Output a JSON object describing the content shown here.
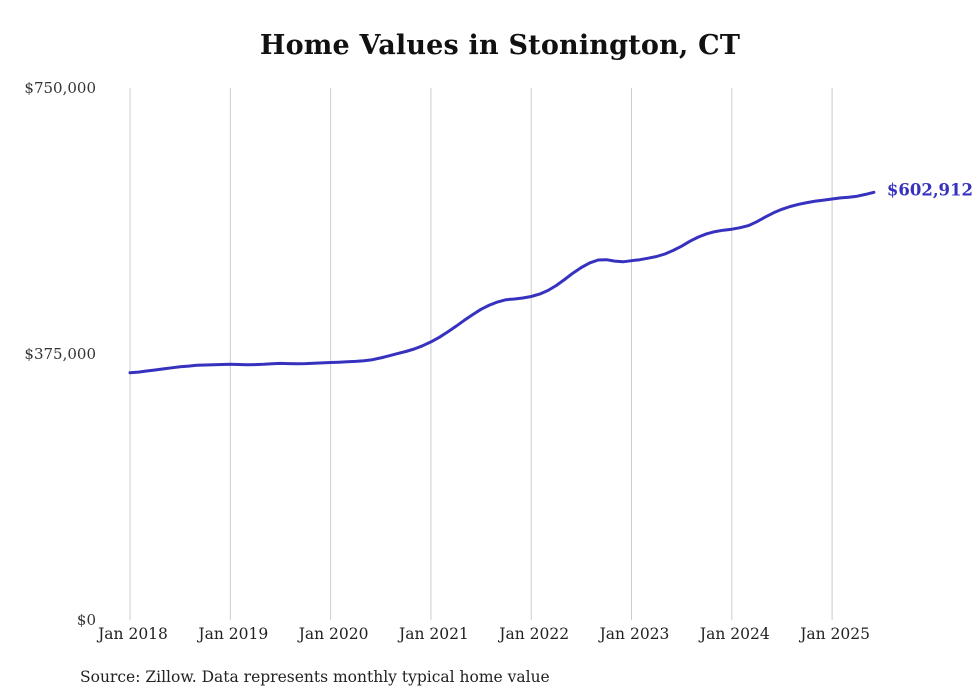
{
  "title": "Home Values in Stonington, CT",
  "source_note": "Source: Zillow. Data represents monthly typical home value",
  "end_label": "$602,912",
  "y_axis": {
    "labels": [
      "$750,000",
      "$375,000",
      "$0"
    ]
  },
  "x_axis": {
    "labels": [
      "Jan 2018",
      "Jan 2019",
      "Jan 2020",
      "Jan 2021",
      "Jan 2022",
      "Jan 2023",
      "Jan 2024",
      "Jan 2025"
    ]
  },
  "colors": {
    "line": "#3632bf",
    "grid": "#cccccc",
    "text": "#222222"
  },
  "chart_data": {
    "type": "line",
    "title": "Home Values in Stonington, CT",
    "xlabel": "",
    "ylabel": "",
    "ylim": [
      0,
      750000
    ],
    "y_ticks": [
      0,
      375000,
      750000
    ],
    "x_ticks": [
      "Jan 2018",
      "Jan 2019",
      "Jan 2020",
      "Jan 2021",
      "Jan 2022",
      "Jan 2023",
      "Jan 2024",
      "Jan 2025"
    ],
    "grid": "vertical-only",
    "legend": "none",
    "end_annotation": "$602,912",
    "x_start": "2018-01",
    "x_end": "2025-06",
    "x_frequency": "monthly",
    "series": [
      {
        "name": "Typical home value",
        "color": "#3632bf",
        "values": [
          348500,
          349500,
          351000,
          352500,
          354000,
          355500,
          357000,
          358000,
          359000,
          359500,
          359800,
          360200,
          360500,
          360200,
          359800,
          360000,
          360500,
          361200,
          361800,
          361500,
          361200,
          361500,
          362000,
          362500,
          363000,
          363500,
          364000,
          364500,
          365500,
          367000,
          369500,
          372500,
          375500,
          378500,
          382000,
          386500,
          392000,
          398500,
          406000,
          414000,
          422500,
          430500,
          438000,
          444000,
          448500,
          451500,
          452500,
          454000,
          456000,
          459500,
          464500,
          471500,
          480000,
          489000,
          497000,
          503500,
          507500,
          508000,
          506000,
          505000,
          506500,
          508000,
          510000,
          512500,
          516000,
          521000,
          527000,
          534000,
          540000,
          544500,
          547500,
          549500,
          551000,
          553000,
          556000,
          561500,
          568000,
          574000,
          579000,
          583000,
          586000,
          588500,
          590500,
          592000,
          593500,
          595000,
          596000,
          597500,
          600000,
          602912
        ]
      }
    ]
  }
}
